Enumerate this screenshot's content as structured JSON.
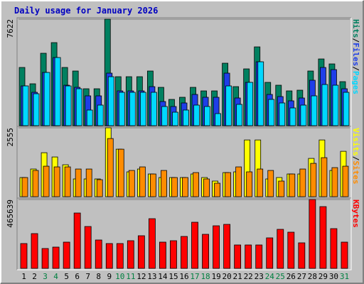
{
  "chart_data": [
    {
      "type": "bar",
      "title": "Daily usage for January 2026",
      "categories": [
        "1",
        "2",
        "3",
        "4",
        "5",
        "6",
        "7",
        "8",
        "9",
        "10",
        "11",
        "12",
        "13",
        "14",
        "15",
        "16",
        "17",
        "18",
        "19",
        "20",
        "21",
        "22",
        "23",
        "24",
        "25",
        "26",
        "27",
        "28",
        "29",
        "30",
        "31"
      ],
      "category_colors": [
        "#000000",
        "#000000",
        "#008040",
        "#008040",
        "#000000",
        "#000000",
        "#000000",
        "#000000",
        "#000000",
        "#008040",
        "#008040",
        "#000000",
        "#000000",
        "#000000",
        "#000000",
        "#000000",
        "#008040",
        "#008040",
        "#000000",
        "#000000",
        "#000000",
        "#000000",
        "#000000",
        "#008040",
        "#008040",
        "#000000",
        "#000000",
        "#000000",
        "#000000",
        "#000000",
        "#008040"
      ],
      "ylim": [
        0,
        7622
      ],
      "yticks": [
        7622
      ],
      "legend_separator": "/",
      "series": [
        {
          "name": "Hits",
          "color": "#008060",
          "values": [
            4166,
            2997,
            5182,
            5944,
            4166,
            3912,
            2642,
            2642,
            7622,
            3505,
            3505,
            3505,
            3912,
            2743,
            1880,
            2032,
            2743,
            2489,
            2489,
            4470,
            2794,
            4064,
            5639,
            3099,
            2896,
            2489,
            2540,
            3912,
            4775,
            4420,
            3150
          ]
        },
        {
          "name": "Files",
          "color": "#1e3ee8",
          "values": [
            2845,
            2388,
            3810,
            4877,
            2896,
            2743,
            2134,
            2134,
            3759,
            2489,
            2489,
            2489,
            2794,
            1727,
            1372,
            1626,
            2235,
            2032,
            2032,
            3759,
            1981,
            3099,
            4572,
            2235,
            2083,
            1778,
            1981,
            3251,
            4166,
            4013,
            2642
          ]
        },
        {
          "name": "Pages",
          "color": "#00d8ff",
          "values": [
            2845,
            2286,
            3810,
            4877,
            2845,
            2642,
            1118,
            1473,
            3505,
            2388,
            2388,
            2388,
            2388,
            1372,
            965,
            1118,
            1473,
            1372,
            864,
            2845,
            1524,
            3099,
            4572,
            1880,
            1626,
            1270,
            1473,
            2134,
            2946,
            2896,
            2388
          ]
        }
      ]
    },
    {
      "type": "bar",
      "ylim": [
        0,
        2555
      ],
      "yticks": [
        2555
      ],
      "legend_separator": "/",
      "series": [
        {
          "name": "Visits",
          "color": "#ffff00",
          "values": [
            710,
            1026,
            1631,
            1473,
            1184,
            658,
            658,
            658,
            2555,
            1762,
            921,
            1026,
            842,
            710,
            710,
            710,
            842,
            710,
            579,
            894,
            921,
            2104,
            2104,
            658,
            710,
            842,
            842,
            1420,
            2104,
            973,
            1683
          ]
        },
        {
          "name": "Sites",
          "color": "#ff8c00",
          "values": [
            710,
            973,
            1131,
            1105,
            1105,
            1026,
            1026,
            631,
            2157,
            1762,
            973,
            1105,
            842,
            973,
            710,
            710,
            894,
            658,
            500,
            894,
            1105,
            921,
            1026,
            973,
            579,
            842,
            1026,
            1236,
            1447,
            1078,
            1131
          ]
        }
      ]
    },
    {
      "type": "bar",
      "ylim": [
        0,
        465639
      ],
      "yticks": [
        465639
      ],
      "series": [
        {
          "name": "KBytes",
          "color": "#ff0000",
          "values": [
            168000,
            235200,
            134400,
            144000,
            177600,
            374400,
            283200,
            192000,
            168000,
            168000,
            187200,
            220800,
            336000,
            177600,
            187200,
            216000,
            312000,
            230400,
            288000,
            297600,
            158400,
            158400,
            158400,
            206400,
            264000,
            244800,
            172800,
            465639,
            417600,
            268800,
            177600
          ]
        }
      ]
    }
  ]
}
